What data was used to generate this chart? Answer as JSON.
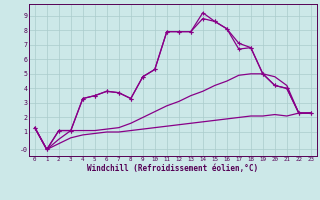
{
  "background_color": "#cce8e8",
  "grid_color": "#aacccc",
  "line_color": "#880088",
  "xlabel": "Windchill (Refroidissement éolien,°C)",
  "xlim": [
    -0.5,
    23.5
  ],
  "ylim": [
    -0.65,
    9.8
  ],
  "xticks": [
    0,
    1,
    2,
    3,
    4,
    5,
    6,
    7,
    8,
    9,
    10,
    11,
    12,
    13,
    14,
    15,
    16,
    17,
    18,
    19,
    20,
    21,
    22,
    23
  ],
  "yticks": [
    -0.2,
    1,
    2,
    3,
    4,
    5,
    6,
    7,
    8,
    9
  ],
  "ytick_labels": [
    "-0",
    "1",
    "2",
    "3",
    "4",
    "5",
    "6",
    "7",
    "8",
    "9"
  ],
  "line1_y": [
    1.3,
    -0.2,
    0.2,
    0.6,
    0.8,
    0.9,
    1.0,
    1.0,
    1.1,
    1.2,
    1.3,
    1.4,
    1.5,
    1.6,
    1.7,
    1.8,
    1.9,
    2.0,
    2.1,
    2.1,
    2.2,
    2.1,
    2.3,
    2.3
  ],
  "line2_y": [
    1.3,
    -0.2,
    0.5,
    1.1,
    1.1,
    1.1,
    1.2,
    1.3,
    1.6,
    2.0,
    2.4,
    2.8,
    3.1,
    3.5,
    3.8,
    4.2,
    4.5,
    4.9,
    5.0,
    5.0,
    4.8,
    4.2,
    2.3,
    2.3
  ],
  "line3_x": [
    0,
    1,
    2,
    3,
    4,
    5,
    6,
    7,
    8,
    9,
    10,
    11,
    12,
    13,
    14,
    15,
    16,
    17,
    18,
    19,
    20,
    21,
    22,
    23
  ],
  "line3_y": [
    1.3,
    -0.2,
    1.1,
    1.1,
    3.3,
    3.5,
    3.8,
    3.7,
    3.3,
    4.8,
    5.3,
    7.9,
    7.9,
    7.9,
    8.8,
    8.6,
    8.1,
    7.1,
    6.8,
    5.0,
    4.2,
    4.0,
    2.3,
    2.3
  ],
  "line4_x": [
    0,
    1,
    2,
    3,
    4,
    5,
    6,
    7,
    8,
    9,
    10,
    11,
    12,
    13,
    14,
    15,
    16,
    17,
    18,
    19,
    20,
    21,
    22,
    23
  ],
  "line4_y": [
    1.3,
    -0.2,
    1.1,
    1.1,
    3.3,
    3.5,
    3.8,
    3.7,
    3.3,
    4.8,
    5.3,
    7.9,
    7.9,
    7.9,
    9.2,
    8.6,
    8.1,
    6.7,
    6.8,
    5.0,
    4.2,
    4.0,
    2.3,
    2.3
  ]
}
